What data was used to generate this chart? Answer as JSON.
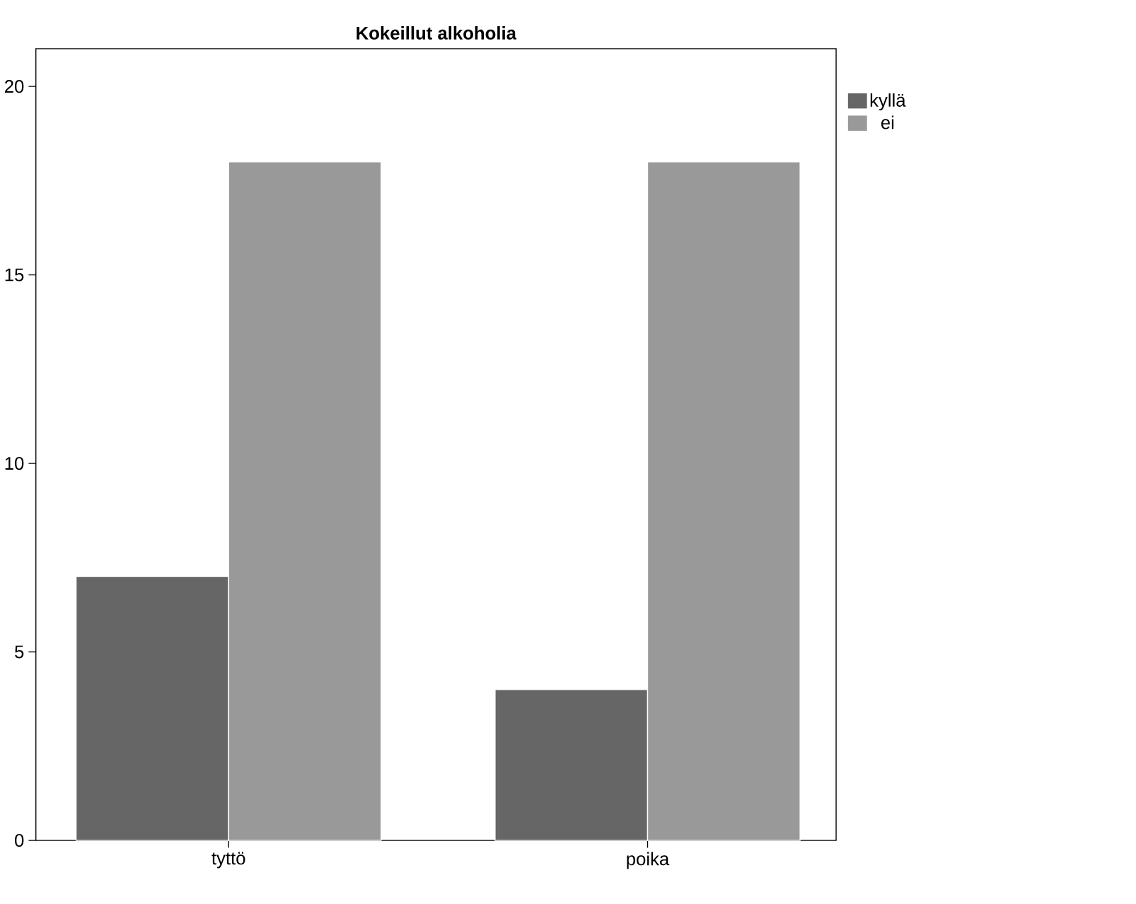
{
  "chart_data": {
    "type": "bar",
    "title": "**Kokeillut alkoholia**",
    "categories": [
      "tyttö",
      "poika"
    ],
    "series": [
      {
        "name": "kyllä",
        "color": "#666666",
        "values": [
          7,
          4
        ]
      },
      {
        "name": "ei",
        "color": "#999999",
        "values": [
          18,
          18
        ]
      }
    ],
    "ylim": [
      0,
      21
    ],
    "yticks": [
      0,
      5,
      10,
      15,
      20
    ],
    "legend": "top right"
  }
}
